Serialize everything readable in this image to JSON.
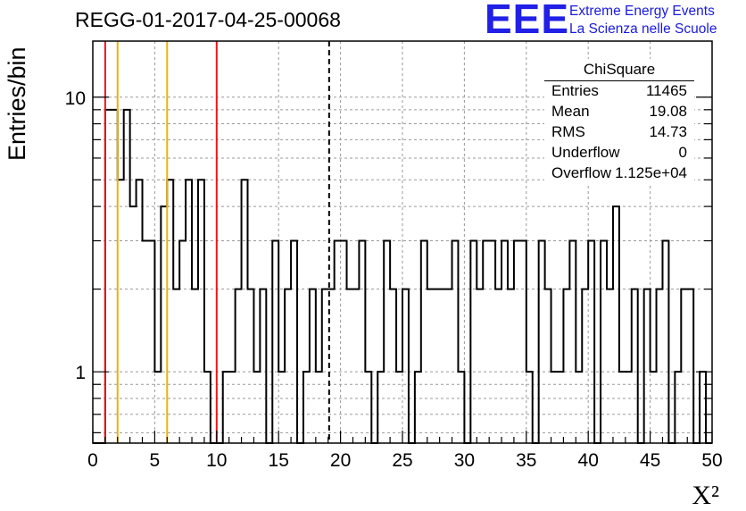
{
  "chart_data": {
    "type": "histogram",
    "title": "REGG-01-2017-04-25-00068",
    "xlabel": "X²",
    "ylabel": "Entries/bin",
    "xlim": [
      0,
      50
    ],
    "ylim": [
      0.55,
      16
    ],
    "yscale": "log",
    "grid": true,
    "x_ticks": [
      "0",
      "5",
      "10",
      "15",
      "20",
      "25",
      "30",
      "35",
      "40",
      "45",
      "50"
    ],
    "y_ticks": [
      "1",
      "10"
    ],
    "bin_width": 0.5,
    "bin_counts": [
      0,
      0,
      9,
      9,
      5,
      9,
      4,
      5,
      3,
      3,
      1,
      4,
      5,
      2,
      3,
      5,
      2,
      5,
      1,
      0,
      0,
      1,
      1,
      2,
      5,
      2,
      1,
      2,
      0,
      3,
      1,
      2,
      3,
      0,
      1,
      2,
      1,
      2,
      2,
      3,
      3,
      2,
      2,
      3,
      1,
      0,
      1,
      3,
      2,
      1,
      2,
      0,
      1,
      3,
      2,
      2,
      2,
      2,
      3,
      1,
      0,
      3,
      2,
      3,
      3,
      2,
      3,
      2,
      3,
      3,
      1,
      0,
      3,
      2,
      1,
      1,
      2,
      3,
      1,
      2,
      3,
      0,
      3,
      2,
      4,
      1,
      1,
      2,
      0,
      2,
      1,
      2,
      3,
      0,
      1,
      2,
      2,
      0,
      1,
      0
    ],
    "vertical_lines": [
      {
        "x": 1,
        "color": "#e8161a",
        "style": "solid"
      },
      {
        "x": 2,
        "color": "#ebb20e",
        "style": "solid"
      },
      {
        "x": 6,
        "color": "#ebb20e",
        "style": "solid"
      },
      {
        "x": 10,
        "color": "#e8161a",
        "style": "solid"
      },
      {
        "x": 19.08,
        "color": "#000000",
        "style": "dashed"
      }
    ],
    "stats_box": {
      "title": "ChiSquare",
      "rows": [
        {
          "label": "Entries",
          "value": "11465"
        },
        {
          "label": "Mean",
          "value": "19.08"
        },
        {
          "label": "RMS",
          "value": "14.73"
        },
        {
          "label": "Underflow",
          "value": "0"
        },
        {
          "label": "Overflow",
          "value": "1.125e+04"
        }
      ]
    }
  },
  "logo": {
    "mark": "EEE",
    "line1": "Extreme Energy Events",
    "line2": "La Scienza nelle Scuole"
  },
  "colors": {
    "histogram": "#000000",
    "grid": "#9a9a9a",
    "logo": "#1a1ae0"
  }
}
